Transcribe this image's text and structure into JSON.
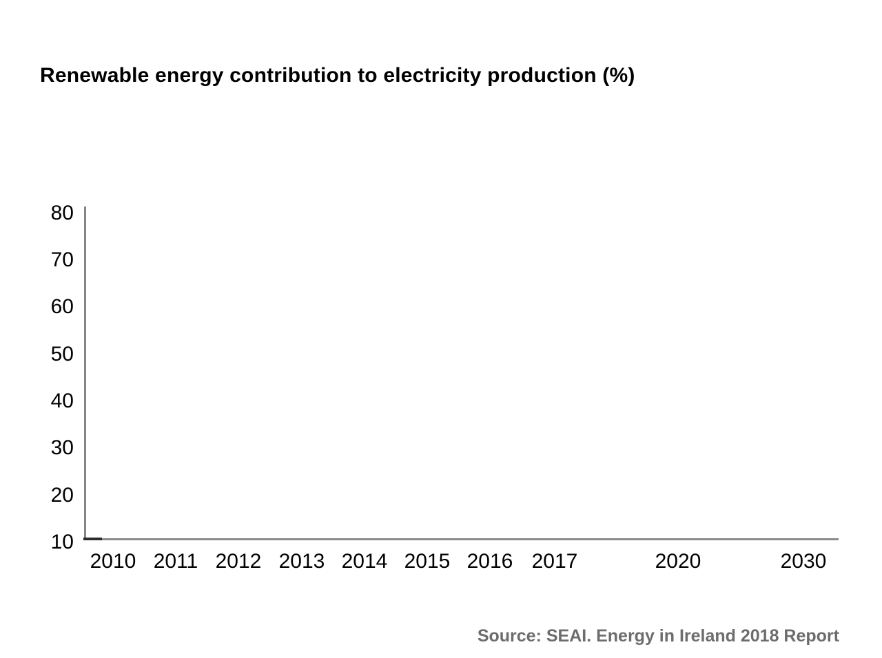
{
  "chart_data": {
    "type": "line",
    "title": "Renewable energy contribution to electricity production (%)",
    "x_tick_labels": [
      "2010",
      "2011",
      "2012",
      "2013",
      "2014",
      "2015",
      "2016",
      "2017",
      "2020",
      "2030"
    ],
    "y_tick_labels": [
      "80",
      "70",
      "60",
      "50",
      "40",
      "30",
      "20",
      "10"
    ],
    "ylim": [
      10,
      80
    ],
    "grid": false,
    "legend_position": "none",
    "series": []
  },
  "footer": {
    "source": "Source: SEAI. Energy in Ireland 2018 Report"
  },
  "colors": {
    "background": "#ffffff",
    "axis": "#8a8a8a",
    "series_start_segment": "#2d2d2d",
    "title_text": "#000000",
    "tick_text": "#000000",
    "source_text": "#6d6d6d"
  }
}
